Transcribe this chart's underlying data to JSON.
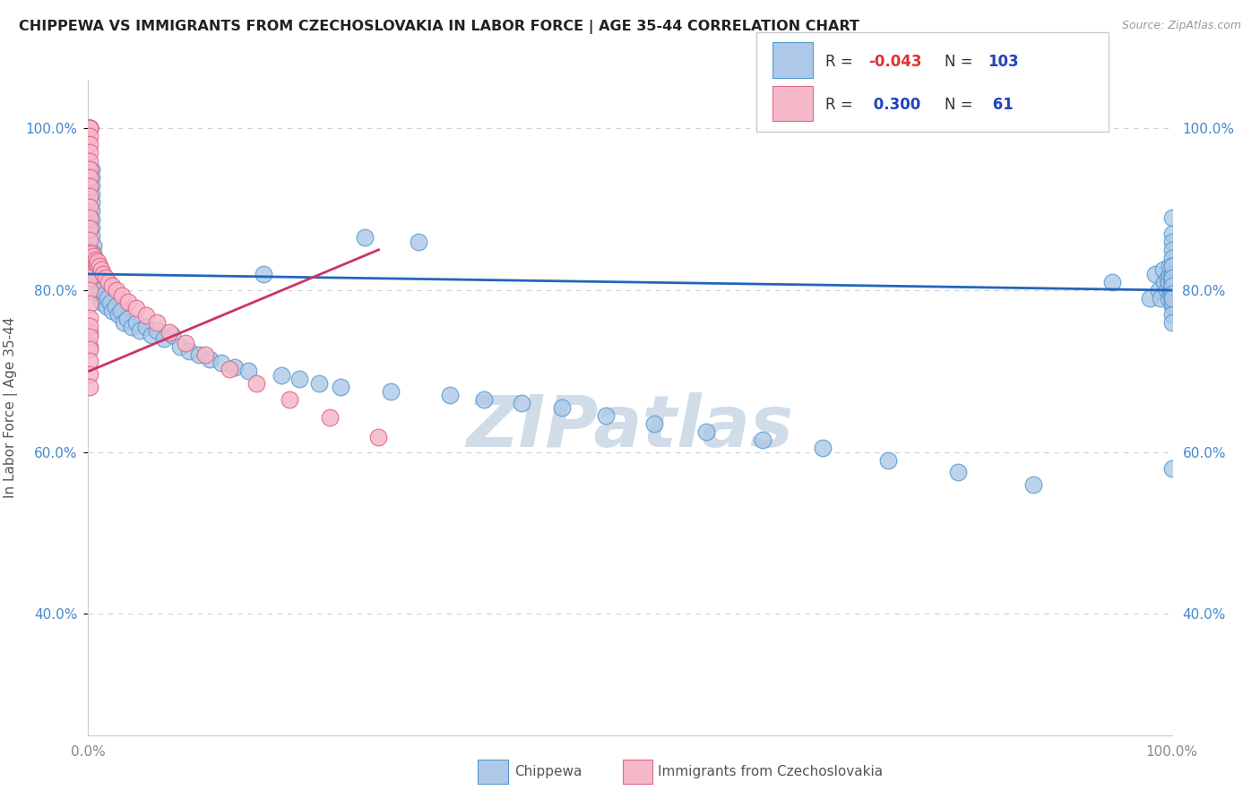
{
  "title": "CHIPPEWA VS IMMIGRANTS FROM CZECHOSLOVAKIA IN LABOR FORCE | AGE 35-44 CORRELATION CHART",
  "source_text": "Source: ZipAtlas.com",
  "ylabel": "In Labor Force | Age 35-44",
  "blue_color": "#adc8e8",
  "blue_edge": "#5599cc",
  "pink_color": "#f5b8c8",
  "pink_edge": "#e06888",
  "trend_blue_color": "#2266bb",
  "trend_pink_color": "#cc3366",
  "watermark_color": "#d0dce8",
  "blue_x": [
    0.003,
    0.003,
    0.003,
    0.003,
    0.003,
    0.003,
    0.003,
    0.003,
    0.003,
    0.005,
    0.005,
    0.005,
    0.006,
    0.007,
    0.008,
    0.009,
    0.01,
    0.011,
    0.012,
    0.013,
    0.015,
    0.017,
    0.018,
    0.02,
    0.022,
    0.025,
    0.028,
    0.03,
    0.033,
    0.036,
    0.04,
    0.044,
    0.048,
    0.053,
    0.058,
    0.063,
    0.07,
    0.077,
    0.085,
    0.093,
    0.102,
    0.112,
    0.123,
    0.135,
    0.148,
    0.162,
    0.178,
    0.195,
    0.213,
    0.233,
    0.255,
    0.279,
    0.305,
    0.334,
    0.365,
    0.4,
    0.437,
    0.478,
    0.522,
    0.57,
    0.622,
    0.678,
    0.738,
    0.803,
    0.872,
    0.945,
    0.98,
    0.985,
    0.988,
    0.99,
    0.992,
    0.993,
    0.995,
    0.996,
    0.997,
    0.997,
    0.998,
    0.998,
    0.999,
    0.999,
    1.0,
    1.0,
    1.0,
    1.0,
    1.0,
    1.0,
    1.0,
    1.0,
    1.0,
    1.0,
    1.0,
    1.0,
    1.0,
    1.0,
    1.0,
    1.0,
    1.0,
    1.0,
    1.0,
    1.0,
    1.0,
    1.0,
    1.0
  ],
  "blue_y": [
    0.95,
    0.94,
    0.93,
    0.918,
    0.908,
    0.898,
    0.888,
    0.878,
    0.868,
    0.855,
    0.845,
    0.835,
    0.825,
    0.815,
    0.82,
    0.8,
    0.81,
    0.79,
    0.8,
    0.785,
    0.795,
    0.78,
    0.79,
    0.785,
    0.775,
    0.78,
    0.77,
    0.775,
    0.76,
    0.765,
    0.755,
    0.76,
    0.75,
    0.755,
    0.745,
    0.75,
    0.74,
    0.745,
    0.73,
    0.725,
    0.72,
    0.715,
    0.71,
    0.705,
    0.7,
    0.82,
    0.695,
    0.69,
    0.685,
    0.68,
    0.865,
    0.675,
    0.86,
    0.67,
    0.665,
    0.66,
    0.655,
    0.645,
    0.635,
    0.625,
    0.615,
    0.605,
    0.59,
    0.575,
    0.56,
    0.81,
    0.79,
    0.82,
    0.8,
    0.79,
    0.825,
    0.81,
    0.8,
    0.815,
    0.79,
    0.81,
    0.82,
    0.83,
    0.8,
    0.795,
    0.89,
    0.87,
    0.86,
    0.85,
    0.84,
    0.83,
    0.82,
    0.81,
    0.8,
    0.79,
    0.78,
    0.82,
    0.81,
    0.8,
    0.83,
    0.815,
    0.805,
    0.795,
    0.785,
    0.77,
    0.76,
    0.58,
    0.79
  ],
  "pink_x": [
    0.001,
    0.001,
    0.001,
    0.001,
    0.001,
    0.001,
    0.001,
    0.001,
    0.001,
    0.001,
    0.001,
    0.001,
    0.001,
    0.001,
    0.001,
    0.001,
    0.001,
    0.001,
    0.001,
    0.001,
    0.001,
    0.001,
    0.001,
    0.001,
    0.001,
    0.001,
    0.001,
    0.001,
    0.001,
    0.001,
    0.001,
    0.001,
    0.001,
    0.002,
    0.003,
    0.004,
    0.005,
    0.006,
    0.007,
    0.008,
    0.009,
    0.01,
    0.012,
    0.014,
    0.016,
    0.019,
    0.022,
    0.026,
    0.031,
    0.037,
    0.044,
    0.053,
    0.063,
    0.075,
    0.09,
    0.108,
    0.13,
    0.155,
    0.186,
    0.223,
    0.268
  ],
  "pink_y": [
    1.0,
    1.0,
    1.0,
    1.0,
    1.0,
    1.0,
    1.0,
    0.99,
    0.98,
    0.97,
    0.96,
    0.95,
    0.94,
    0.928,
    0.916,
    0.903,
    0.89,
    0.876,
    0.862,
    0.847,
    0.832,
    0.816,
    0.8,
    0.783,
    0.766,
    0.748,
    0.73,
    0.756,
    0.742,
    0.727,
    0.712,
    0.696,
    0.68,
    0.84,
    0.845,
    0.838,
    0.842,
    0.835,
    0.838,
    0.832,
    0.835,
    0.83,
    0.825,
    0.82,
    0.815,
    0.81,
    0.805,
    0.8,
    0.793,
    0.786,
    0.778,
    0.769,
    0.76,
    0.748,
    0.735,
    0.72,
    0.703,
    0.685,
    0.665,
    0.643,
    0.618
  ],
  "blue_trend_x": [
    0.0,
    1.0
  ],
  "blue_trend_y": [
    0.82,
    0.8
  ],
  "pink_trend_x": [
    0.001,
    0.268
  ],
  "pink_trend_y": [
    0.7,
    0.85
  ],
  "xlim": [
    0.0,
    1.0
  ],
  "ylim": [
    0.25,
    1.06
  ],
  "yticks": [
    0.4,
    0.6,
    0.8,
    1.0
  ],
  "ytick_labels": [
    "40.0%",
    "60.0%",
    "80.0%",
    "100.0%"
  ],
  "xticks": [
    0.0,
    1.0
  ],
  "xtick_labels": [
    "0.0%",
    "100.0%"
  ]
}
